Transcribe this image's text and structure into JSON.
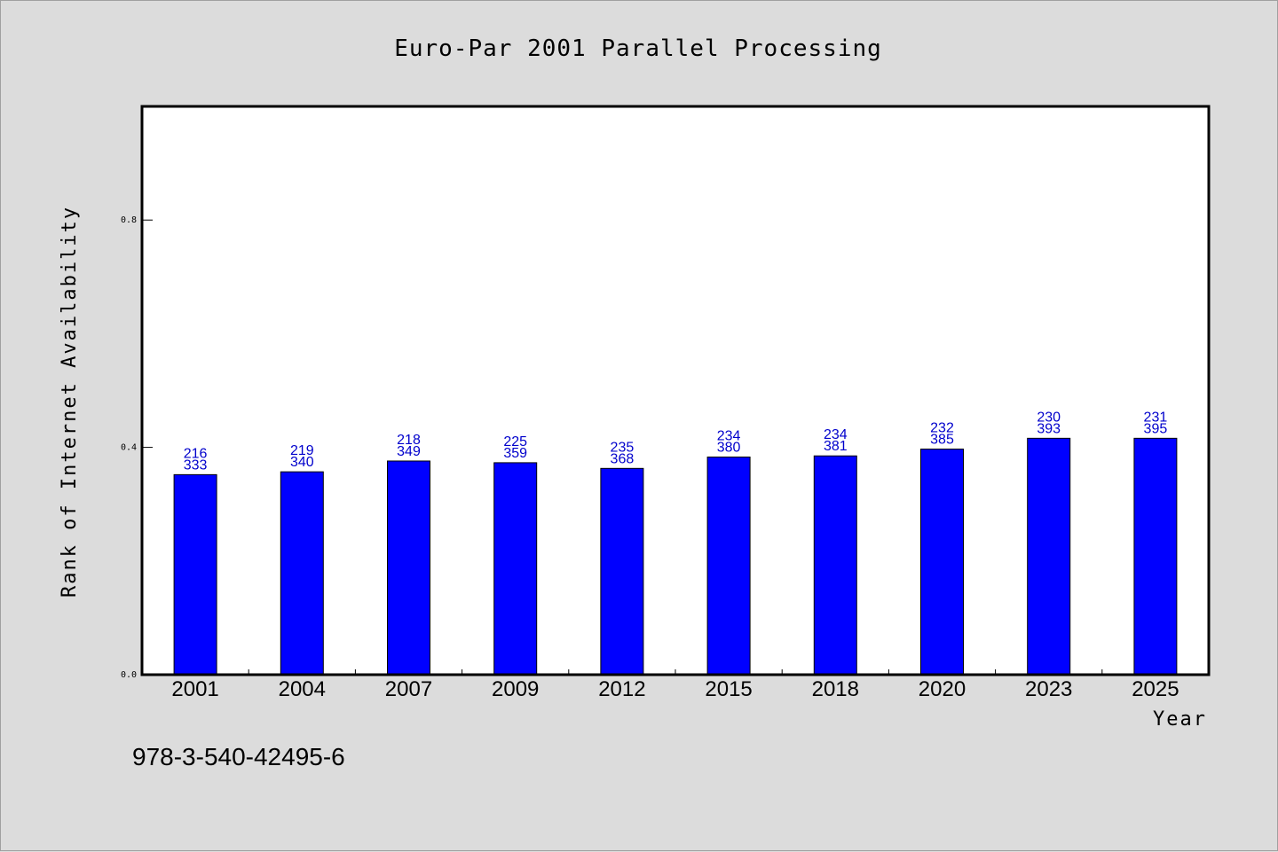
{
  "chart_data": {
    "type": "bar",
    "title": "Euro-Par 2001 Parallel Processing",
    "xlabel": "Year",
    "ylabel": "Rank of Internet Availability",
    "ylim": [
      0,
      1
    ],
    "yticks": [
      0.0,
      0.4,
      0.8
    ],
    "ytick_labels": [
      "0.0",
      "0.4",
      "0.8"
    ],
    "grid": false,
    "categories": [
      "2001",
      "2004",
      "2007",
      "2009",
      "2012",
      "2015",
      "2018",
      "2020",
      "2023",
      "2025"
    ],
    "values": [
      0.352,
      0.357,
      0.376,
      0.373,
      0.363,
      0.383,
      0.385,
      0.397,
      0.416,
      0.416
    ],
    "labels_top": [
      "216",
      "219",
      "218",
      "225",
      "235",
      "234",
      "234",
      "232",
      "230",
      "231"
    ],
    "labels_bottom": [
      "333",
      "340",
      "349",
      "359",
      "368",
      "380",
      "381",
      "385",
      "393",
      "395"
    ],
    "bar_color": "#0000ff",
    "label_color": "#0000cc",
    "footnote": "978-3-540-42495-6"
  }
}
